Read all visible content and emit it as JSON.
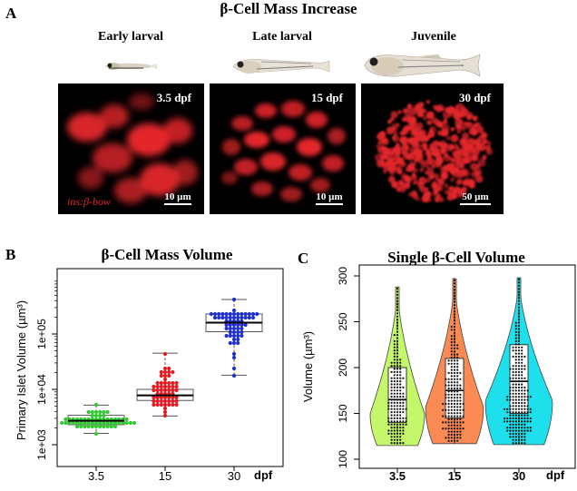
{
  "figure": {
    "panel_a_letter": "A",
    "panel_b_letter": "B",
    "panel_c_letter": "C",
    "title": "β-Cell Mass Increase",
    "stages": [
      {
        "label": "Early larval",
        "dpf": "3.5 dpf",
        "scale": "10 µm",
        "reporter": "ins:β-bow"
      },
      {
        "label": "Late larval",
        "dpf": "15 dpf",
        "scale": "10 µm"
      },
      {
        "label": "Juvenile",
        "dpf": "30 dpf",
        "scale": "50 µm"
      }
    ],
    "colors": {
      "fluorescence": "#e3262b",
      "green": "#34c934",
      "red": "#e31c23",
      "blue": "#1f2fcc",
      "violin_green": "#c4f76a",
      "violin_orange": "#fb8a55",
      "violin_cyan": "#1ee0ec"
    }
  },
  "chart_data": [
    {
      "type": "box",
      "title": "β-Cell Mass Volume",
      "ylabel": "Primary Islet Volume (µm³)",
      "y_scale": "log",
      "yticks": [
        "1e+03",
        "1e+04",
        "1e+05"
      ],
      "xticks": [
        "3.5",
        "15",
        "30"
      ],
      "xunit": "dpf",
      "series": [
        {
          "x": "3.5",
          "min": 1600,
          "q1": 2300,
          "median": 2700,
          "q3": 3400,
          "max": 5200,
          "n": 60
        },
        {
          "x": "15",
          "min": 3300,
          "q1": 6300,
          "median": 7800,
          "q3": 10000,
          "max": 45000,
          "n": 60
        },
        {
          "x": "30",
          "min": 18000,
          "q1": 110000,
          "median": 160000,
          "q3": 230000,
          "max": 420000,
          "n": 60
        }
      ]
    },
    {
      "type": "violin",
      "title": "Single β-Cell Volume",
      "ylabel": "Volume (µm³)",
      "ylim": [
        100,
        300
      ],
      "yticks": [
        "100",
        "150",
        "200",
        "250",
        "300"
      ],
      "xticks": [
        "3.5",
        "15",
        "30"
      ],
      "xunit": "dpf",
      "series": [
        {
          "x": "3.5",
          "min": 115,
          "q1": 140,
          "median": 165,
          "q3": 200,
          "max": 288
        },
        {
          "x": "15",
          "min": 117,
          "q1": 145,
          "median": 175,
          "q3": 210,
          "max": 297
        },
        {
          "x": "30",
          "min": 116,
          "q1": 150,
          "median": 185,
          "q3": 225,
          "max": 298
        }
      ]
    }
  ]
}
